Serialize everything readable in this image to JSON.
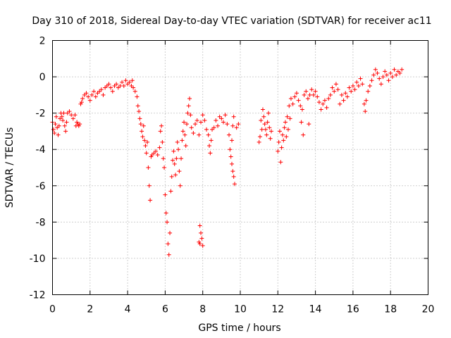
{
  "chart_data": {
    "type": "scatter",
    "title": "Day 310 of 2018, Sidereal Day-to-day VTEC variation (SDTVAR) for receiver ac11",
    "xlabel": "GPS time / hours",
    "ylabel": "SDTVAR / TECUs",
    "xlim": [
      0,
      20
    ],
    "ylim": [
      -12,
      2
    ],
    "x_ticks": [
      0,
      2,
      4,
      6,
      8,
      10,
      12,
      14,
      16,
      18,
      20
    ],
    "y_ticks": [
      2,
      0,
      -2,
      -4,
      -6,
      -8,
      -10,
      -12
    ],
    "grid": true,
    "marker": "+",
    "color": "#ff0000",
    "series": [
      {
        "name": "SDTVAR",
        "points": [
          [
            0.0,
            -2.5
          ],
          [
            0.05,
            -2.9
          ],
          [
            0.1,
            -3.1
          ],
          [
            0.15,
            -2.6
          ],
          [
            0.2,
            -2.2
          ],
          [
            0.25,
            -2.8
          ],
          [
            0.3,
            -3.2
          ],
          [
            0.35,
            -2.7
          ],
          [
            0.4,
            -2.3
          ],
          [
            0.45,
            -2.0
          ],
          [
            0.5,
            -2.2
          ],
          [
            0.55,
            -2.4
          ],
          [
            0.6,
            -2.0
          ],
          [
            0.65,
            -2.7
          ],
          [
            0.7,
            -3.0
          ],
          [
            0.75,
            -2.5
          ],
          [
            0.8,
            -2.0
          ],
          [
            0.9,
            -1.9
          ],
          [
            1.0,
            -2.1
          ],
          [
            1.1,
            -2.3
          ],
          [
            1.2,
            -2.1
          ],
          [
            1.25,
            -2.7
          ],
          [
            1.3,
            -2.5
          ],
          [
            1.35,
            -2.6
          ],
          [
            1.4,
            -2.7
          ],
          [
            1.45,
            -2.6
          ],
          [
            1.5,
            -1.5
          ],
          [
            1.55,
            -1.4
          ],
          [
            1.6,
            -1.2
          ],
          [
            1.7,
            -1.0
          ],
          [
            1.8,
            -0.9
          ],
          [
            1.9,
            -1.1
          ],
          [
            2.0,
            -1.3
          ],
          [
            2.1,
            -1.0
          ],
          [
            2.2,
            -0.8
          ],
          [
            2.3,
            -1.1
          ],
          [
            2.4,
            -0.9
          ],
          [
            2.5,
            -0.8
          ],
          [
            2.6,
            -0.7
          ],
          [
            2.7,
            -1.0
          ],
          [
            2.8,
            -0.6
          ],
          [
            2.9,
            -0.5
          ],
          [
            3.0,
            -0.4
          ],
          [
            3.1,
            -0.6
          ],
          [
            3.2,
            -0.8
          ],
          [
            3.3,
            -0.5
          ],
          [
            3.4,
            -0.4
          ],
          [
            3.5,
            -0.6
          ],
          [
            3.6,
            -0.5
          ],
          [
            3.7,
            -0.3
          ],
          [
            3.8,
            -0.5
          ],
          [
            3.9,
            -0.2
          ],
          [
            4.0,
            -0.4
          ],
          [
            4.1,
            -0.3
          ],
          [
            4.2,
            -0.5
          ],
          [
            4.25,
            -0.2
          ],
          [
            4.3,
            -0.6
          ],
          [
            4.4,
            -0.8
          ],
          [
            4.5,
            -1.1
          ],
          [
            4.55,
            -1.6
          ],
          [
            4.6,
            -1.9
          ],
          [
            4.65,
            -2.3
          ],
          [
            4.7,
            -2.6
          ],
          [
            4.75,
            -3.0
          ],
          [
            4.8,
            -3.3
          ],
          [
            4.85,
            -2.7
          ],
          [
            4.9,
            -3.5
          ],
          [
            4.95,
            -3.8
          ],
          [
            5.0,
            -4.2
          ],
          [
            5.05,
            -3.6
          ],
          [
            5.1,
            -5.0
          ],
          [
            5.15,
            -6.0
          ],
          [
            5.2,
            -6.8
          ],
          [
            5.25,
            -4.4
          ],
          [
            5.3,
            -4.3
          ],
          [
            5.4,
            -4.2
          ],
          [
            5.5,
            -4.1
          ],
          [
            5.6,
            -4.3
          ],
          [
            5.7,
            -3.9
          ],
          [
            5.75,
            -3.0
          ],
          [
            5.8,
            -2.7
          ],
          [
            5.85,
            -3.6
          ],
          [
            5.9,
            -4.5
          ],
          [
            5.95,
            -5.0
          ],
          [
            6.0,
            -6.5
          ],
          [
            6.05,
            -7.5
          ],
          [
            6.1,
            -8.0
          ],
          [
            6.15,
            -9.2
          ],
          [
            6.2,
            -9.8
          ],
          [
            6.25,
            -8.6
          ],
          [
            6.3,
            -6.3
          ],
          [
            6.35,
            -5.5
          ],
          [
            6.4,
            -4.6
          ],
          [
            6.45,
            -4.1
          ],
          [
            6.5,
            -4.8
          ],
          [
            6.55,
            -5.4
          ],
          [
            6.6,
            -4.5
          ],
          [
            6.65,
            -3.6
          ],
          [
            6.7,
            -4.0
          ],
          [
            6.75,
            -5.2
          ],
          [
            6.8,
            -6.0
          ],
          [
            6.85,
            -4.5
          ],
          [
            6.9,
            -3.5
          ],
          [
            6.95,
            -3.0
          ],
          [
            7.0,
            -2.5
          ],
          [
            7.05,
            -3.2
          ],
          [
            7.1,
            -3.8
          ],
          [
            7.15,
            -2.6
          ],
          [
            7.2,
            -2.0
          ],
          [
            7.25,
            -1.6
          ],
          [
            7.3,
            -1.2
          ],
          [
            7.35,
            -2.1
          ],
          [
            7.4,
            -2.8
          ],
          [
            7.5,
            -3.1
          ],
          [
            7.6,
            -2.6
          ],
          [
            7.7,
            -2.4
          ],
          [
            7.8,
            -3.2
          ],
          [
            7.9,
            -2.5
          ],
          [
            8.0,
            -2.1
          ],
          [
            8.1,
            -2.4
          ],
          [
            8.2,
            -2.9
          ],
          [
            8.3,
            -3.2
          ],
          [
            8.35,
            -3.8
          ],
          [
            8.4,
            -4.2
          ],
          [
            8.45,
            -3.5
          ],
          [
            8.5,
            -2.9
          ],
          [
            8.6,
            -2.8
          ],
          [
            8.7,
            -2.4
          ],
          [
            8.8,
            -2.7
          ],
          [
            8.9,
            -2.2
          ],
          [
            9.0,
            -2.3
          ],
          [
            9.1,
            -2.5
          ],
          [
            9.2,
            -2.1
          ],
          [
            9.3,
            -2.6
          ],
          [
            9.4,
            -3.2
          ],
          [
            9.45,
            -4.0
          ],
          [
            9.5,
            -4.4
          ],
          [
            9.55,
            -4.8
          ],
          [
            9.6,
            -5.2
          ],
          [
            9.65,
            -5.5
          ],
          [
            9.7,
            -5.9
          ],
          [
            9.55,
            -3.5
          ],
          [
            9.6,
            -2.7
          ],
          [
            9.65,
            -2.2
          ],
          [
            9.8,
            -2.8
          ],
          [
            9.9,
            -2.6
          ],
          [
            7.8,
            -9.1
          ],
          [
            7.85,
            -9.2
          ],
          [
            7.9,
            -8.6
          ],
          [
            7.95,
            -8.9
          ],
          [
            8.0,
            -9.3
          ],
          [
            7.85,
            -8.2
          ],
          [
            11.0,
            -3.6
          ],
          [
            11.05,
            -3.3
          ],
          [
            11.1,
            -2.4
          ],
          [
            11.15,
            -2.9
          ],
          [
            11.2,
            -1.8
          ],
          [
            11.25,
            -2.2
          ],
          [
            11.3,
            -2.6
          ],
          [
            11.35,
            -2.9
          ],
          [
            11.4,
            -3.2
          ],
          [
            11.45,
            -2.5
          ],
          [
            11.5,
            -2.0
          ],
          [
            11.55,
            -2.8
          ],
          [
            11.6,
            -3.4
          ],
          [
            11.65,
            -3.0
          ],
          [
            12.0,
            -4.1
          ],
          [
            12.05,
            -3.6
          ],
          [
            12.1,
            -3.0
          ],
          [
            12.15,
            -4.7
          ],
          [
            12.2,
            -3.9
          ],
          [
            12.25,
            -3.2
          ],
          [
            12.3,
            -3.5
          ],
          [
            12.35,
            -2.8
          ],
          [
            12.4,
            -2.5
          ],
          [
            12.45,
            -3.3
          ],
          [
            12.5,
            -2.2
          ],
          [
            12.55,
            -2.9
          ],
          [
            12.6,
            -1.6
          ],
          [
            12.65,
            -2.3
          ],
          [
            12.7,
            -1.2
          ],
          [
            12.8,
            -1.5
          ],
          [
            12.9,
            -1.1
          ],
          [
            13.0,
            -0.9
          ],
          [
            13.1,
            -1.3
          ],
          [
            13.2,
            -1.6
          ],
          [
            13.25,
            -2.5
          ],
          [
            13.3,
            -1.8
          ],
          [
            13.35,
            -3.2
          ],
          [
            13.4,
            -1.0
          ],
          [
            13.5,
            -0.8
          ],
          [
            13.6,
            -1.2
          ],
          [
            13.65,
            -2.6
          ],
          [
            13.7,
            -1.0
          ],
          [
            13.8,
            -0.7
          ],
          [
            13.9,
            -1.0
          ],
          [
            14.0,
            -0.8
          ],
          [
            14.1,
            -1.1
          ],
          [
            14.2,
            -1.4
          ],
          [
            14.3,
            -1.8
          ],
          [
            14.4,
            -1.5
          ],
          [
            14.5,
            -1.3
          ],
          [
            14.6,
            -1.7
          ],
          [
            14.7,
            -1.2
          ],
          [
            14.8,
            -1.0
          ],
          [
            14.9,
            -0.6
          ],
          [
            15.0,
            -0.8
          ],
          [
            15.1,
            -0.4
          ],
          [
            15.2,
            -0.7
          ],
          [
            15.3,
            -1.5
          ],
          [
            15.4,
            -1.0
          ],
          [
            15.5,
            -1.3
          ],
          [
            15.6,
            -0.9
          ],
          [
            15.7,
            -1.1
          ],
          [
            15.8,
            -0.6
          ],
          [
            15.9,
            -0.8
          ],
          [
            16.0,
            -0.5
          ],
          [
            16.1,
            -0.7
          ],
          [
            16.2,
            -0.3
          ],
          [
            16.3,
            -0.5
          ],
          [
            16.4,
            -0.1
          ],
          [
            16.5,
            -0.4
          ],
          [
            16.6,
            -1.5
          ],
          [
            16.65,
            -1.9
          ],
          [
            16.7,
            -1.3
          ],
          [
            16.8,
            -0.8
          ],
          [
            16.9,
            -0.5
          ],
          [
            17.0,
            -0.2
          ],
          [
            17.1,
            0.1
          ],
          [
            17.2,
            0.4
          ],
          [
            17.3,
            0.2
          ],
          [
            17.4,
            -0.1
          ],
          [
            17.5,
            -0.4
          ],
          [
            17.6,
            0.0
          ],
          [
            17.7,
            0.3
          ],
          [
            17.8,
            0.1
          ],
          [
            17.9,
            -0.2
          ],
          [
            18.0,
            0.2
          ],
          [
            18.1,
            0.0
          ],
          [
            18.2,
            0.4
          ],
          [
            18.3,
            0.1
          ],
          [
            18.4,
            0.3
          ],
          [
            18.5,
            0.2
          ],
          [
            18.6,
            0.4
          ]
        ]
      }
    ]
  }
}
